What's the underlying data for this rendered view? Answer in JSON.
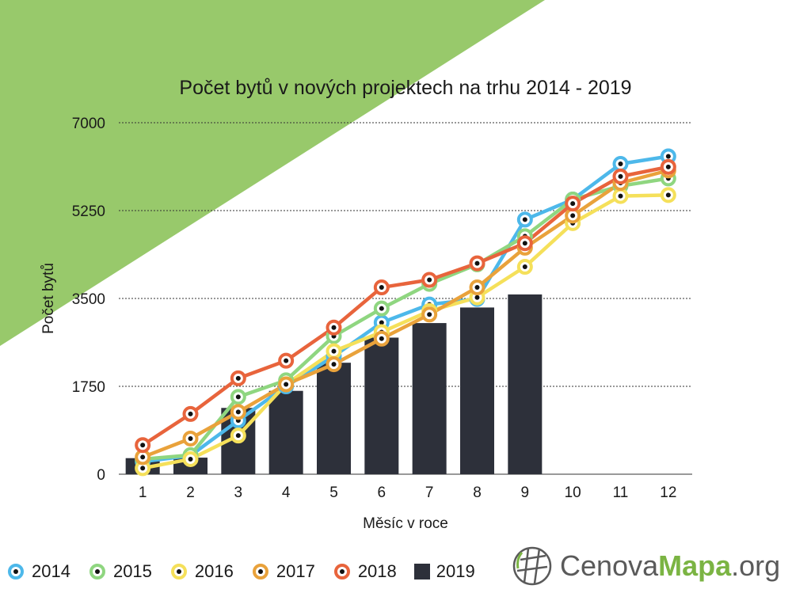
{
  "chart_data": {
    "type": "bar+line",
    "title": "Počet bytů v nových projektech na trhu 2014 - 2019",
    "xlabel": "Měsíc v roce",
    "ylabel": "Počet bytů",
    "categories": [
      "1",
      "2",
      "3",
      "4",
      "5",
      "6",
      "7",
      "8",
      "9",
      "10",
      "11",
      "12"
    ],
    "ylim": [
      0,
      7000
    ],
    "yticks": [
      "0",
      "1750",
      "3500",
      "5250",
      "7000"
    ],
    "grid": "dotted horizontal",
    "legend": "bottom",
    "bar_series": {
      "name": "2019",
      "color": "#2d303a",
      "values": [
        320,
        330,
        1320,
        1660,
        2220,
        2720,
        3010,
        3320,
        3580,
        null,
        null,
        null
      ]
    },
    "series": [
      {
        "name": "2014",
        "color": "#4db8ea",
        "values": [
          250,
          370,
          1070,
          1750,
          2350,
          3020,
          3380,
          3490,
          5070,
          5470,
          6180,
          6330
        ]
      },
      {
        "name": "2015",
        "color": "#8fd680",
        "values": [
          300,
          380,
          1540,
          1870,
          2750,
          3300,
          3790,
          4180,
          4740,
          5470,
          5740,
          5890
        ]
      },
      {
        "name": "2016",
        "color": "#f5e05a",
        "values": [
          120,
          300,
          770,
          1790,
          2450,
          2830,
          3250,
          3520,
          4130,
          5000,
          5540,
          5560
        ]
      },
      {
        "name": "2017",
        "color": "#e9a23b",
        "values": [
          340,
          710,
          1240,
          1790,
          2190,
          2700,
          3180,
          3720,
          4510,
          5150,
          5800,
          6050
        ]
      },
      {
        "name": "2018",
        "color": "#e8643c",
        "values": [
          580,
          1200,
          1910,
          2260,
          2920,
          3720,
          3870,
          4200,
          4600,
          5390,
          5930,
          6120
        ]
      }
    ]
  },
  "brand": {
    "part1": "Cenova",
    "part2": "Mapa",
    "part3": ".org"
  },
  "colors": {
    "green_bg": "#98c96b",
    "brand_gray": "#5a5a5a",
    "brand_green": "#7bb443"
  }
}
